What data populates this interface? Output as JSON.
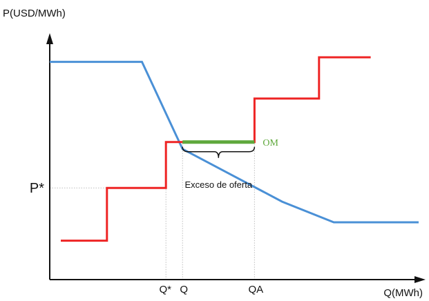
{
  "chart_data": {
    "type": "line",
    "ylabel": "P(USD/MWh)",
    "xlabel": "Q(MWh)",
    "xlim": [
      0,
      100
    ],
    "ylim": [
      0,
      100
    ],
    "y_tick": {
      "label": "P*",
      "value": 40
    },
    "x_ticks": [
      {
        "label": "Q*",
        "value": 31.5
      },
      {
        "label": "Q",
        "value": 36
      },
      {
        "label": "QA",
        "value": 55.5
      }
    ],
    "series": [
      {
        "role": "demand",
        "color": "#4a90d6",
        "points": [
          [
            0,
            95
          ],
          [
            25,
            95
          ],
          [
            36,
            57
          ],
          [
            63,
            34
          ],
          [
            77,
            25
          ],
          [
            100,
            25
          ]
        ]
      },
      {
        "role": "supply",
        "color": "#ee2424",
        "points": [
          [
            3,
            17
          ],
          [
            15.5,
            17
          ],
          [
            15.5,
            40
          ],
          [
            31.5,
            40
          ],
          [
            31.5,
            60
          ],
          [
            55.5,
            60
          ],
          [
            55.5,
            79
          ],
          [
            73,
            79
          ],
          [
            73,
            97
          ],
          [
            87,
            97
          ]
        ]
      }
    ],
    "om_segment": {
      "label": "OM",
      "color": "#5fa83c",
      "x": [
        36,
        55.5
      ],
      "y": 60
    },
    "annotation": {
      "text": "Exceso de oferta",
      "x_range": [
        36,
        55.5
      ]
    },
    "colors": {
      "axes": "#111111",
      "guides": "#bcbcbc"
    }
  }
}
